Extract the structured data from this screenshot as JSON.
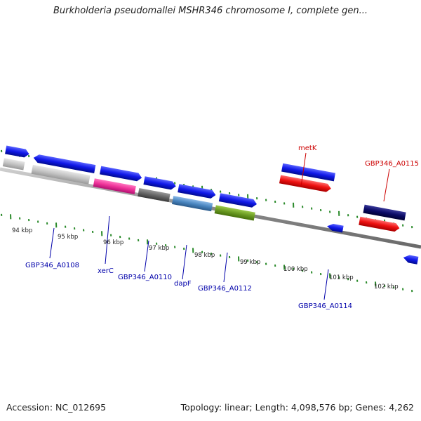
{
  "title": "Burkholderia pseudomallei MSHR346 chromosome I, complete gen...",
  "footer": {
    "accession": "Accession: NC_012695",
    "summary": "Topology: linear; Length: 4,098,576 bp; Genes: 4,262"
  },
  "ticks": [
    "94 kbp",
    "95 kbp",
    "96 kbp",
    "97 kbp",
    "98 kbp",
    "99 kbp",
    "100 kbp",
    "101 kbp",
    "102 kbp"
  ],
  "gene_labels": [
    {
      "text": "GBP346_A0108",
      "color": "#0000aa"
    },
    {
      "text": "xerC",
      "color": "#0000aa"
    },
    {
      "text": "GBP346_A0110",
      "color": "#0000aa"
    },
    {
      "text": "dapF",
      "color": "#0000aa"
    },
    {
      "text": "GBP346_A0112",
      "color": "#0000aa"
    },
    {
      "text": "GBP346_A0114",
      "color": "#0000aa"
    },
    {
      "text": "metK",
      "color": "#cc0000"
    },
    {
      "text": "GBP346_A0115",
      "color": "#cc0000"
    }
  ],
  "colors": {
    "gene_blue": "#0a14e6",
    "gene_red": "#ee1111",
    "gene_navy": "#0a0a66",
    "gene_gray": "#c8c8c8",
    "gene_pink": "#ee3399",
    "gene_darkgray": "#666666",
    "gene_steel": "#4a86c0",
    "gene_olive": "#6a9a22",
    "dots": "#2a8a2a"
  }
}
